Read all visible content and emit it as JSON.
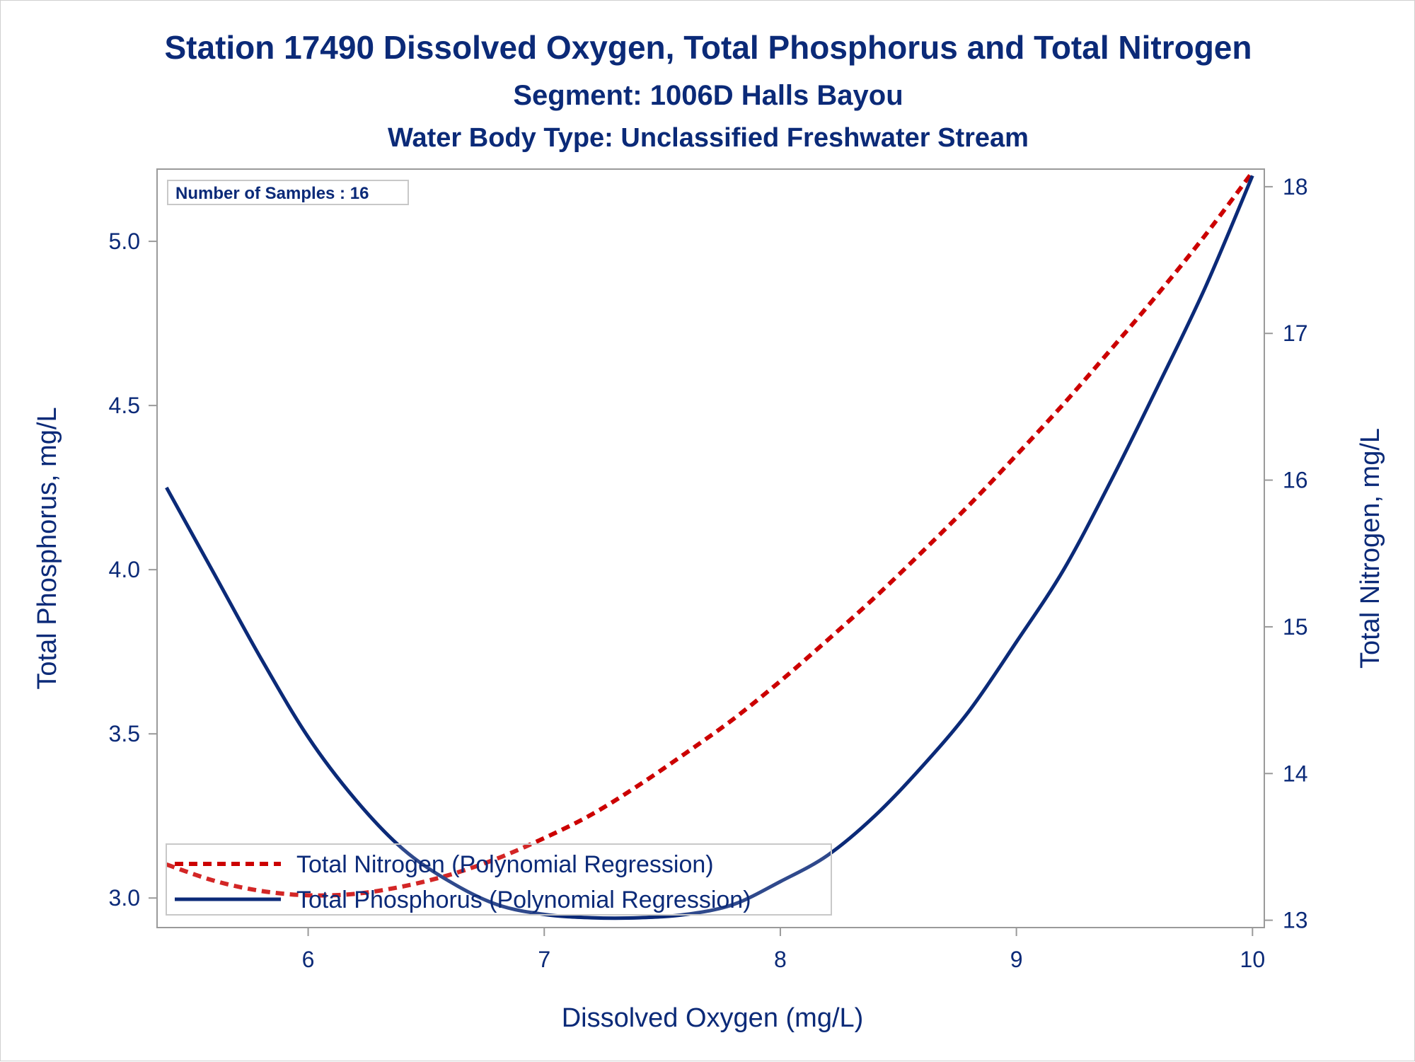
{
  "chart_data": {
    "type": "line",
    "title": "Station 17490  Dissolved Oxygen, Total Phosphorus and Total Nitrogen",
    "subtitle": "Segment: 1006D  Halls Bayou",
    "subtitle2": "Water Body Type: Unclassified Freshwater Stream",
    "xlabel": "Dissolved Oxygen (mg/L)",
    "ylabel": "Total Phosphorus, mg/L",
    "y2label": "Total Nitrogen, mg/L",
    "xlim": [
      5.36,
      10.05
    ],
    "ylim": [
      2.91,
      5.22
    ],
    "y2lim": [
      12.95,
      18.12
    ],
    "x_ticks": [
      6,
      7,
      8,
      9,
      10
    ],
    "y_ticks": [
      3.0,
      3.5,
      4.0,
      4.5,
      5.0
    ],
    "y_tick_labels": [
      "3.0",
      "3.5",
      "4.0",
      "4.5",
      "5.0"
    ],
    "y2_ticks": [
      13,
      14,
      15,
      16,
      17,
      18
    ],
    "inset_label": "Number of Samples : 16",
    "legend_position": "bottom-left",
    "grid": false,
    "series": [
      {
        "name": "Total Nitrogen (Polynomial Regression)",
        "axis": "y2",
        "style": "dashed",
        "color": "#cc0000",
        "x": [
          5.4,
          5.6,
          5.8,
          6.0,
          6.2,
          6.4,
          6.6,
          6.8,
          7.0,
          7.2,
          7.4,
          7.6,
          7.8,
          8.0,
          8.2,
          8.4,
          8.6,
          8.8,
          9.0,
          9.2,
          9.4,
          9.6,
          9.8,
          10.0
        ],
        "y": [
          13.38,
          13.27,
          13.2,
          13.17,
          13.18,
          13.23,
          13.31,
          13.42,
          13.56,
          13.72,
          13.92,
          14.14,
          14.37,
          14.63,
          14.91,
          15.2,
          15.51,
          15.83,
          16.17,
          16.52,
          16.89,
          17.27,
          17.67,
          18.1
        ]
      },
      {
        "name": "Total Phosphorus (Polynomial Regression)",
        "axis": "y",
        "style": "solid",
        "color": "#0b2a78",
        "x": [
          5.4,
          5.6,
          5.8,
          6.0,
          6.2,
          6.4,
          6.6,
          6.8,
          7.0,
          7.2,
          7.4,
          7.6,
          7.8,
          8.0,
          8.2,
          8.4,
          8.6,
          8.8,
          9.0,
          9.2,
          9.4,
          9.6,
          9.8,
          10.0
        ],
        "y": [
          4.25,
          3.99,
          3.73,
          3.49,
          3.3,
          3.15,
          3.05,
          2.98,
          2.95,
          2.94,
          2.94,
          2.95,
          2.98,
          3.05,
          3.13,
          3.25,
          3.4,
          3.57,
          3.78,
          4.0,
          4.27,
          4.56,
          4.86,
          5.2
        ]
      }
    ]
  },
  "colors": {
    "text": "#0b2a78",
    "nitrogen": "#cc0000",
    "phosphorus": "#0b2a78",
    "frame": "#9a9a9a"
  }
}
